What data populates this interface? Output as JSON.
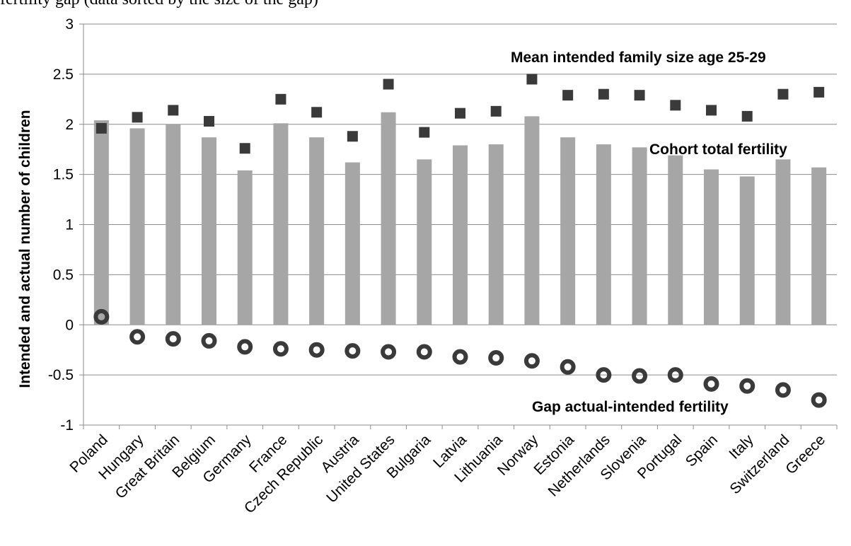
{
  "caption_fragment": "fertility gap (data sorted by the size of the gap)",
  "chart_data": {
    "type": "bar",
    "ylabel": "Intended and actual number of children",
    "ylim": [
      -1,
      3
    ],
    "yticks": [
      -1,
      -0.5,
      0,
      0.5,
      1,
      1.5,
      2,
      2.5,
      3
    ],
    "ytick_labels": [
      "-1",
      "-0.5",
      "0",
      "0.5",
      "1",
      "1.5",
      "2",
      "2.5",
      "3"
    ],
    "grid": true,
    "categories": [
      "Poland",
      "Hungary",
      "Great Britain",
      "Belgium",
      "Germany",
      "France",
      "Czech Republic",
      "Austria",
      "United States",
      "Bulgaria",
      "Latvia",
      "Lithuania",
      "Norway",
      "Estonia",
      "Netherlands",
      "Slovenia",
      "Portugal",
      "Spain",
      "Italy",
      "Switzerland",
      "Greece"
    ],
    "series": [
      {
        "name": "Cohort total fertility",
        "kind": "bar",
        "color": "#a6a6a6",
        "values": [
          2.04,
          1.96,
          2.0,
          1.87,
          1.54,
          2.01,
          1.87,
          1.62,
          2.12,
          1.65,
          1.79,
          1.8,
          2.08,
          1.87,
          1.8,
          1.77,
          1.69,
          1.55,
          1.48,
          1.65,
          1.57
        ]
      },
      {
        "name": "Mean intended family size age 25-29",
        "kind": "square",
        "color": "#3a3a3a",
        "values": [
          1.96,
          2.07,
          2.14,
          2.03,
          1.76,
          2.25,
          2.12,
          1.88,
          2.4,
          1.92,
          2.11,
          2.13,
          2.45,
          2.29,
          2.3,
          2.29,
          2.19,
          2.14,
          2.08,
          2.3,
          2.32
        ]
      },
      {
        "name": "Gap actual-intended fertility",
        "kind": "ring",
        "color": "#3a3a3a",
        "values": [
          0.08,
          -0.12,
          -0.14,
          -0.16,
          -0.22,
          -0.24,
          -0.25,
          -0.26,
          -0.27,
          -0.27,
          -0.32,
          -0.33,
          -0.36,
          -0.42,
          -0.5,
          -0.51,
          -0.5,
          -0.59,
          -0.61,
          -0.65,
          -0.75
        ]
      }
    ],
    "annotations": [
      {
        "series": 1,
        "text": "Mean intended family size age 25-29"
      },
      {
        "series": 0,
        "text": "Cohort total fertility"
      },
      {
        "series": 2,
        "text": "Gap actual-intended fertility"
      }
    ]
  }
}
